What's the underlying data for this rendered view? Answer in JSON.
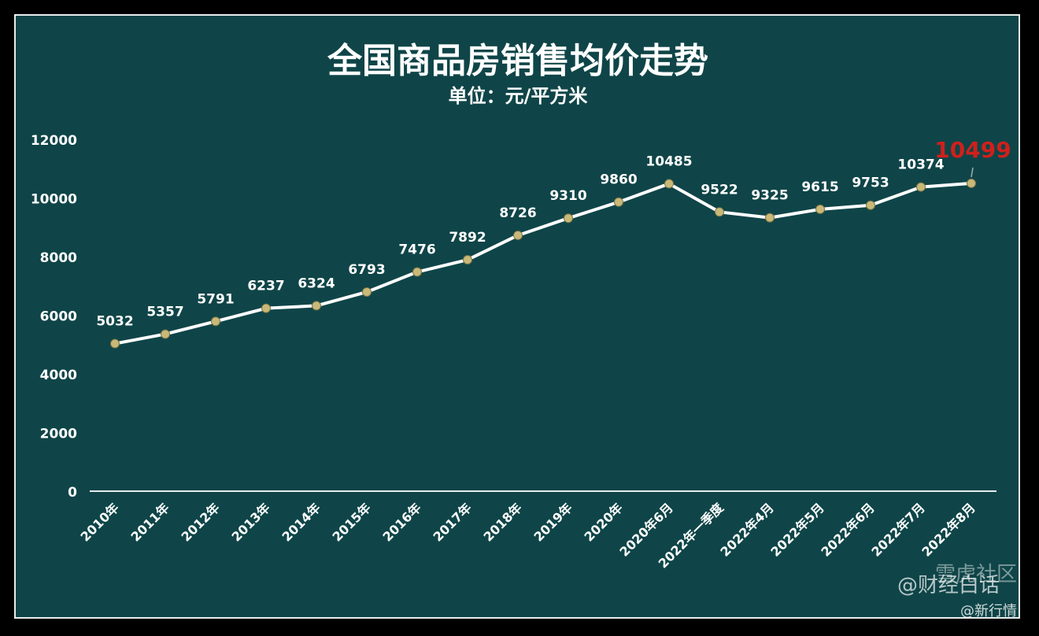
{
  "chart_data": {
    "type": "line",
    "title": "全国商品房销售均价走势",
    "subtitle": "单位：元/平方米",
    "categories": [
      "2010年",
      "2011年",
      "2012年",
      "2013年",
      "2014年",
      "2015年",
      "2016年",
      "2017年",
      "2018年",
      "2019年",
      "2020年",
      "2020年6月",
      "2022年一季度",
      "2022年4月",
      "2022年5月",
      "2022年6月",
      "2022年7月",
      "2022年8月"
    ],
    "values": [
      5032,
      5357,
      5791,
      6237,
      6324,
      6793,
      7476,
      7892,
      8726,
      9310,
      9860,
      10485,
      9522,
      9325,
      9615,
      9753,
      10374,
      10499
    ],
    "yticks": [
      0,
      2000,
      4000,
      6000,
      8000,
      10000,
      12000
    ],
    "ylim": [
      0,
      12000
    ],
    "highlight_index": 17,
    "grid": false,
    "colors": {
      "background": "#0f4548",
      "line": "#ffffff",
      "marker": "#c9b978",
      "highlight": "#d0201c",
      "text": "#ffffff"
    }
  },
  "watermark": {
    "line1": "@财经白话",
    "line2": "雪虎社区",
    "line3": "@新行情"
  }
}
